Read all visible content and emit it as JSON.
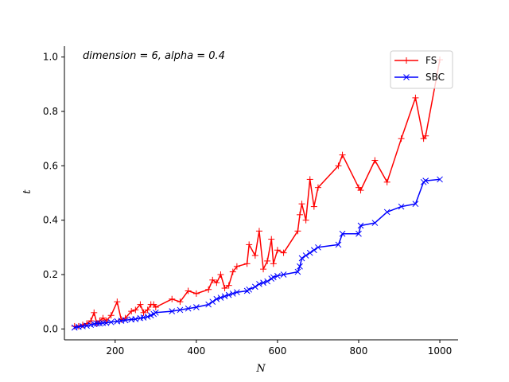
{
  "chart_data": {
    "type": "line",
    "title": "",
    "xlabel": "N",
    "ylabel": "t",
    "annotation": "dimension = 6, alpha = 0.4",
    "xlim": [
      75,
      1045
    ],
    "ylim": [
      -0.04,
      1.04
    ],
    "xticks": [
      200,
      400,
      600,
      800,
      1000
    ],
    "yticks": [
      0.0,
      0.2,
      0.4,
      0.6,
      0.8,
      1.0
    ],
    "xtick_labels": [
      "200",
      "400",
      "600",
      "800",
      "1000"
    ],
    "ytick_labels": [
      "0.0",
      "0.2",
      "0.4",
      "0.6",
      "0.8",
      "1.0"
    ],
    "grid": false,
    "legend_position": "top-right",
    "series": [
      {
        "name": "FS",
        "color": "#ff0000",
        "marker": "plus",
        "x": [
          100,
          110,
          120,
          130,
          140,
          148,
          155,
          162,
          170,
          178,
          190,
          205,
          215,
          225,
          240,
          250,
          262,
          270,
          280,
          288,
          295,
          300,
          340,
          360,
          380,
          400,
          430,
          440,
          450,
          460,
          470,
          480,
          490,
          500,
          525,
          530,
          545,
          555,
          565,
          575,
          585,
          590,
          600,
          615,
          650,
          655,
          660,
          670,
          680,
          690,
          700,
          750,
          760,
          800,
          805,
          840,
          870,
          905,
          940,
          960,
          965,
          1000
        ],
        "y": [
          0.01,
          0.01,
          0.015,
          0.02,
          0.03,
          0.06,
          0.02,
          0.03,
          0.04,
          0.03,
          0.05,
          0.1,
          0.035,
          0.04,
          0.065,
          0.07,
          0.09,
          0.06,
          0.07,
          0.09,
          0.09,
          0.08,
          0.11,
          0.1,
          0.14,
          0.13,
          0.145,
          0.18,
          0.17,
          0.2,
          0.15,
          0.16,
          0.21,
          0.23,
          0.24,
          0.31,
          0.27,
          0.36,
          0.22,
          0.25,
          0.33,
          0.24,
          0.29,
          0.28,
          0.36,
          0.42,
          0.46,
          0.4,
          0.55,
          0.45,
          0.52,
          0.6,
          0.64,
          0.52,
          0.51,
          0.62,
          0.54,
          0.7,
          0.85,
          0.7,
          0.71,
          0.99
        ]
      },
      {
        "name": "SBC",
        "color": "#0000ff",
        "marker": "x",
        "x": [
          100,
          110,
          120,
          130,
          140,
          148,
          155,
          162,
          170,
          178,
          190,
          205,
          215,
          225,
          240,
          250,
          262,
          270,
          280,
          288,
          295,
          300,
          340,
          360,
          380,
          400,
          430,
          440,
          450,
          460,
          470,
          480,
          490,
          500,
          525,
          530,
          545,
          555,
          565,
          575,
          585,
          590,
          600,
          615,
          650,
          655,
          660,
          670,
          680,
          690,
          700,
          750,
          760,
          800,
          805,
          840,
          870,
          905,
          940,
          960,
          965,
          1000
        ],
        "y": [
          0.005,
          0.008,
          0.01,
          0.012,
          0.015,
          0.018,
          0.02,
          0.02,
          0.022,
          0.022,
          0.025,
          0.028,
          0.03,
          0.032,
          0.035,
          0.036,
          0.04,
          0.042,
          0.045,
          0.05,
          0.055,
          0.06,
          0.065,
          0.07,
          0.075,
          0.08,
          0.09,
          0.1,
          0.11,
          0.115,
          0.12,
          0.125,
          0.13,
          0.135,
          0.14,
          0.145,
          0.155,
          0.165,
          0.17,
          0.175,
          0.185,
          0.19,
          0.195,
          0.2,
          0.21,
          0.23,
          0.26,
          0.27,
          0.28,
          0.29,
          0.3,
          0.31,
          0.35,
          0.35,
          0.38,
          0.39,
          0.43,
          0.45,
          0.46,
          0.54,
          0.545,
          0.55
        ]
      }
    ]
  }
}
